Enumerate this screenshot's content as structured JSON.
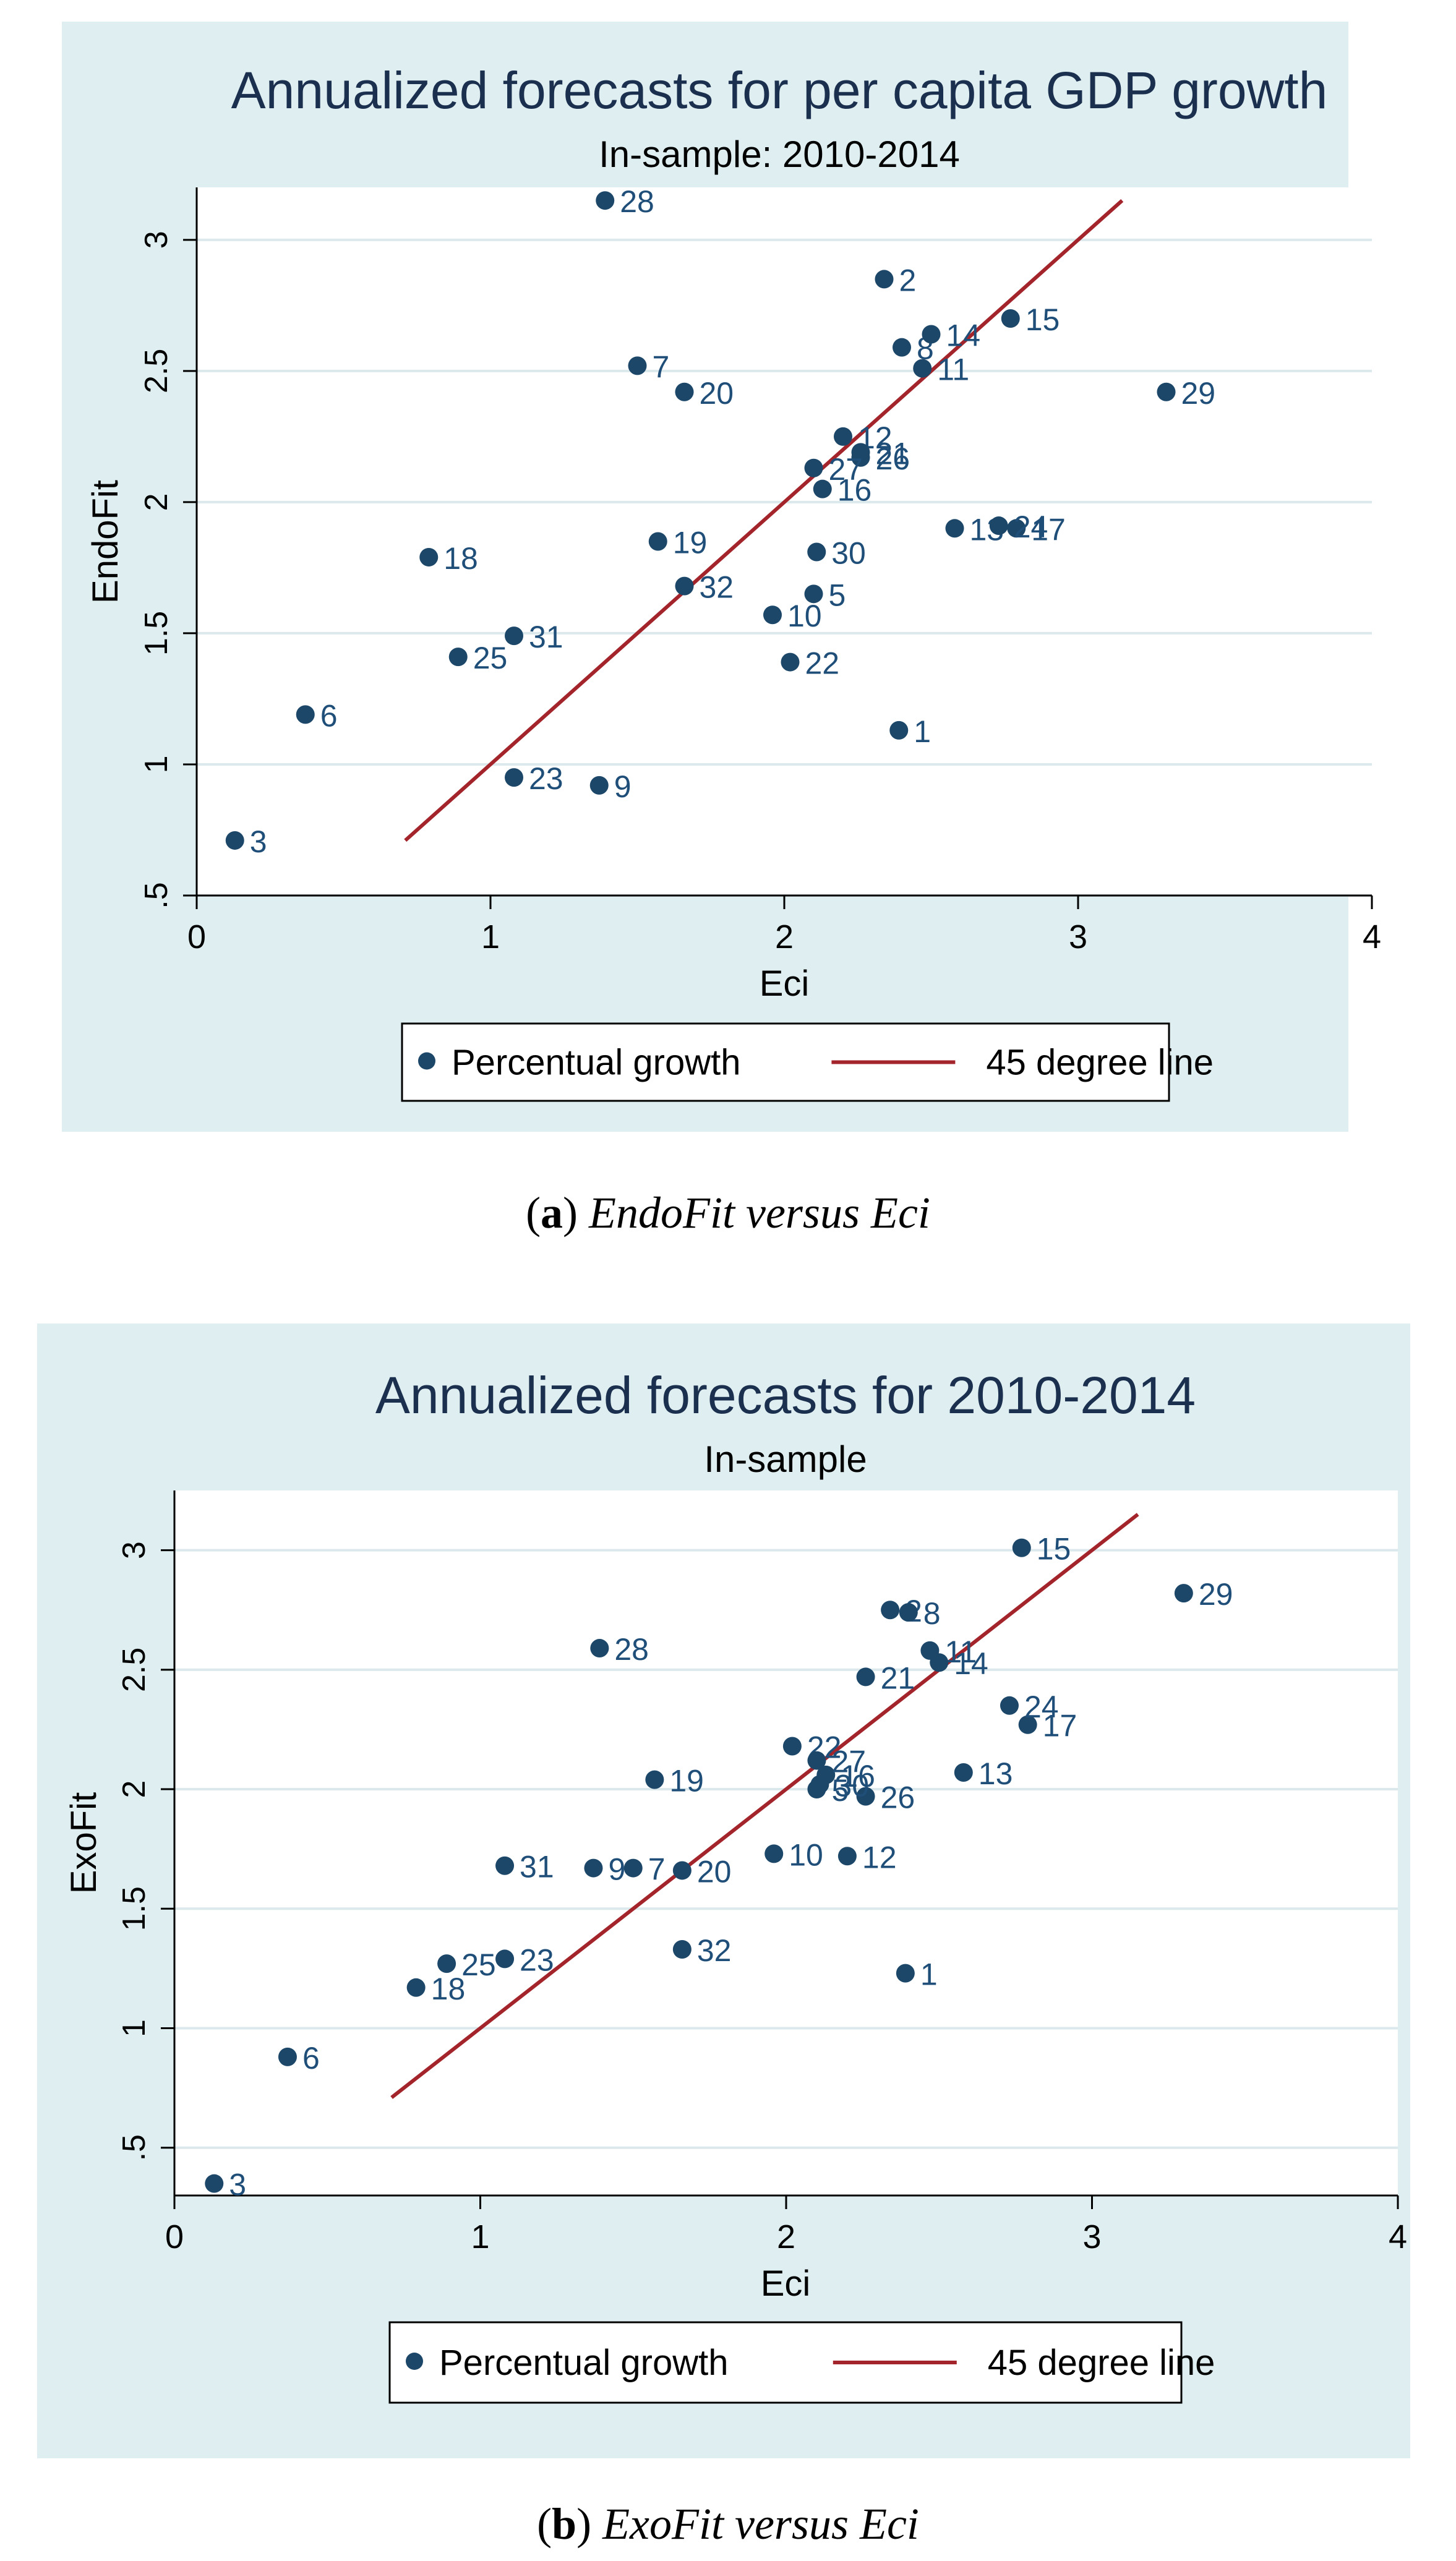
{
  "chart_data": [
    {
      "type": "scatter",
      "title": "Annualized forecasts for per capita GDP  growth",
      "subtitle": "In-sample: 2010-2014",
      "xlabel": "Eci",
      "ylabel": "EndoFit",
      "xlim": [
        0,
        4
      ],
      "ylim": [
        0.5,
        3.2
      ],
      "xticks": [
        "0",
        "1",
        "2",
        "3",
        "4"
      ],
      "yticks": [
        ".5",
        "1",
        "1.5",
        "2",
        "2.5",
        "3"
      ],
      "ytick_values": [
        0.5,
        1,
        1.5,
        2,
        2.5,
        3
      ],
      "grid": true,
      "legend": [
        "Percentual growth",
        "45 degree line"
      ],
      "line": {
        "name": "45 degree line",
        "from": [
          0.71,
          0.71
        ],
        "to": [
          3.15,
          3.15
        ]
      },
      "points": [
        {
          "label": "1",
          "x": 2.39,
          "y": 1.13
        },
        {
          "label": "2",
          "x": 2.34,
          "y": 2.85
        },
        {
          "label": "3",
          "x": 0.13,
          "y": 0.71
        },
        {
          "label": "5",
          "x": 2.1,
          "y": 1.65
        },
        {
          "label": "6",
          "x": 0.37,
          "y": 1.19
        },
        {
          "label": "7",
          "x": 1.5,
          "y": 2.52
        },
        {
          "label": "8",
          "x": 2.4,
          "y": 2.59
        },
        {
          "label": "9",
          "x": 1.37,
          "y": 0.92
        },
        {
          "label": "10",
          "x": 1.96,
          "y": 1.57
        },
        {
          "label": "11",
          "x": 2.47,
          "y": 2.51
        },
        {
          "label": "12",
          "x": 2.2,
          "y": 2.25
        },
        {
          "label": "13",
          "x": 2.58,
          "y": 1.9
        },
        {
          "label": "14",
          "x": 2.5,
          "y": 2.64
        },
        {
          "label": "15",
          "x": 2.77,
          "y": 2.7
        },
        {
          "label": "16",
          "x": 2.13,
          "y": 2.05
        },
        {
          "label": "17",
          "x": 2.79,
          "y": 1.9
        },
        {
          "label": "18",
          "x": 0.79,
          "y": 1.79
        },
        {
          "label": "19",
          "x": 1.57,
          "y": 1.85
        },
        {
          "label": "20",
          "x": 1.66,
          "y": 2.42
        },
        {
          "label": "21",
          "x": 2.26,
          "y": 2.19
        },
        {
          "label": "22",
          "x": 2.02,
          "y": 1.39
        },
        {
          "label": "23",
          "x": 1.08,
          "y": 0.95
        },
        {
          "label": "24",
          "x": 2.73,
          "y": 1.91
        },
        {
          "label": "25",
          "x": 0.89,
          "y": 1.41
        },
        {
          "label": "26",
          "x": 2.26,
          "y": 2.17
        },
        {
          "label": "27",
          "x": 2.1,
          "y": 2.13
        },
        {
          "label": "28",
          "x": 1.39,
          "y": 3.15
        },
        {
          "label": "29",
          "x": 3.3,
          "y": 2.42
        },
        {
          "label": "30",
          "x": 2.11,
          "y": 1.81
        },
        {
          "label": "31",
          "x": 1.08,
          "y": 1.49
        },
        {
          "label": "32",
          "x": 1.66,
          "y": 1.68
        }
      ]
    },
    {
      "type": "scatter",
      "title": "Annualized forecasts for 2010-2014",
      "subtitle": "In-sample",
      "xlabel": "Eci",
      "ylabel": "ExoFit",
      "xlim": [
        0,
        4
      ],
      "ylim": [
        0.3,
        3.25
      ],
      "xticks": [
        "0",
        "1",
        "2",
        "3",
        "4"
      ],
      "yticks": [
        ".5",
        "1",
        "1.5",
        "2",
        "2.5",
        "3"
      ],
      "ytick_values": [
        0.5,
        1,
        1.5,
        2,
        2.5,
        3
      ],
      "grid": true,
      "legend": [
        "Percentual growth",
        "45 degree line"
      ],
      "line": {
        "name": "45 degree line",
        "from": [
          0.71,
          0.71
        ],
        "to": [
          3.15,
          3.15
        ]
      },
      "points": [
        {
          "label": "1",
          "x": 2.39,
          "y": 1.23
        },
        {
          "label": "2",
          "x": 2.34,
          "y": 2.75
        },
        {
          "label": "3",
          "x": 0.13,
          "y": 0.35
        },
        {
          "label": "5",
          "x": 2.1,
          "y": 2.0
        },
        {
          "label": "6",
          "x": 0.37,
          "y": 0.88
        },
        {
          "label": "7",
          "x": 1.5,
          "y": 1.67
        },
        {
          "label": "8",
          "x": 2.4,
          "y": 2.74
        },
        {
          "label": "9",
          "x": 1.37,
          "y": 1.67
        },
        {
          "label": "10",
          "x": 1.96,
          "y": 1.73
        },
        {
          "label": "11",
          "x": 2.47,
          "y": 2.58
        },
        {
          "label": "12",
          "x": 2.2,
          "y": 1.72
        },
        {
          "label": "13",
          "x": 2.58,
          "y": 2.07
        },
        {
          "label": "14",
          "x": 2.5,
          "y": 2.53
        },
        {
          "label": "15",
          "x": 2.77,
          "y": 3.01
        },
        {
          "label": "16",
          "x": 2.13,
          "y": 2.06
        },
        {
          "label": "17",
          "x": 2.79,
          "y": 2.27
        },
        {
          "label": "18",
          "x": 0.79,
          "y": 1.17
        },
        {
          "label": "19",
          "x": 1.57,
          "y": 2.04
        },
        {
          "label": "20",
          "x": 1.66,
          "y": 1.66
        },
        {
          "label": "21",
          "x": 2.26,
          "y": 2.47
        },
        {
          "label": "22",
          "x": 2.02,
          "y": 2.18
        },
        {
          "label": "23",
          "x": 1.08,
          "y": 1.29
        },
        {
          "label": "24",
          "x": 2.73,
          "y": 2.35
        },
        {
          "label": "25",
          "x": 0.89,
          "y": 1.27
        },
        {
          "label": "26",
          "x": 2.26,
          "y": 1.97
        },
        {
          "label": "27",
          "x": 2.1,
          "y": 2.12
        },
        {
          "label": "28",
          "x": 1.39,
          "y": 2.59
        },
        {
          "label": "29",
          "x": 3.3,
          "y": 2.82
        },
        {
          "label": "30",
          "x": 2.11,
          "y": 2.02
        },
        {
          "label": "31",
          "x": 1.08,
          "y": 1.68
        },
        {
          "label": "32",
          "x": 1.66,
          "y": 1.33
        }
      ]
    }
  ],
  "captions": [
    {
      "letter": "a",
      "text": "EndoFit versus Eci"
    },
    {
      "letter": "b",
      "text": "ExoFit versus Eci"
    }
  ],
  "colors": {
    "panel_bg": "#dfeef0",
    "plot_bg": "#ffffff",
    "grid": "#dbe9ec",
    "marker": "#1c4769",
    "line": "#a3252b",
    "title": "#1b2f4e",
    "text": "#000000",
    "label": "#1f4e79"
  }
}
